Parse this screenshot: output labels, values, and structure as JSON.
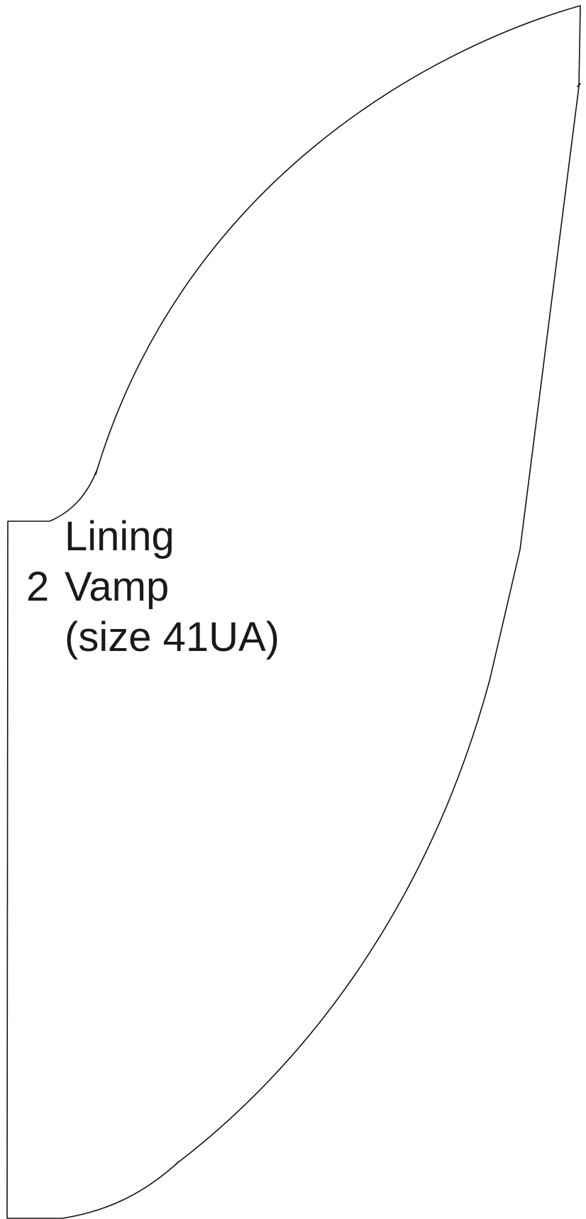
{
  "pattern_piece": {
    "label": {
      "line1": "Lining",
      "line2_count": "2",
      "line2_name": "Vamp",
      "line3": "(size 41UA)"
    },
    "outline_color": "#111111",
    "text_color": "#1a1a1a",
    "background_color": "#ffffff"
  }
}
